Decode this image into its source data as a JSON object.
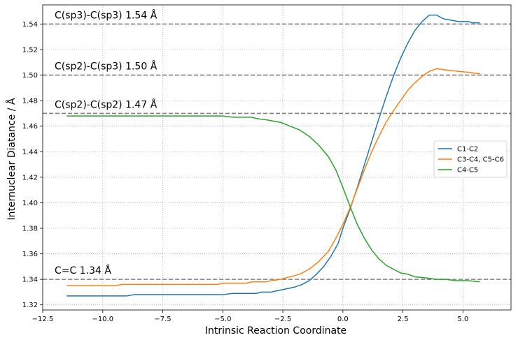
{
  "chart_data": {
    "type": "line",
    "title": "",
    "xlabel": "Intrinsic Reaction Coordinate",
    "ylabel": "Internuclear Diatance / Å",
    "xlim": [
      -12.5,
      7.0
    ],
    "ylim": [
      1.316,
      1.555
    ],
    "x_ticks": [
      -12.5,
      -10.0,
      -7.5,
      -5.0,
      -2.5,
      0.0,
      2.5,
      5.0
    ],
    "x_tick_labels": [
      "−12.5",
      "−10.0",
      "−7.5",
      "−5.0",
      "−2.5",
      "0.0",
      "2.5",
      "5.0"
    ],
    "y_ticks": [
      1.32,
      1.34,
      1.36,
      1.38,
      1.4,
      1.42,
      1.44,
      1.46,
      1.48,
      1.5,
      1.52,
      1.54
    ],
    "y_tick_labels": [
      "1.32",
      "1.34",
      "1.36",
      "1.38",
      "1.40",
      "1.42",
      "1.44",
      "1.46",
      "1.48",
      "1.50",
      "1.52",
      "1.54"
    ],
    "grid": true,
    "legend_position": "center-right",
    "reference_lines": [
      {
        "y": 1.54,
        "label": "C(sp3)-C(sp3) 1.54 Å",
        "color": "#808080"
      },
      {
        "y": 1.5,
        "label": "C(sp2)-C(sp3) 1.50 Å",
        "color": "#808080"
      },
      {
        "y": 1.47,
        "label": "C(sp2)-C(sp2) 1.47 Å",
        "color": "#808080"
      },
      {
        "y": 1.34,
        "label": "C=C 1.34 Å",
        "color": "#808080"
      }
    ],
    "series": [
      {
        "name": "C1-C2",
        "color": "#1f77b4",
        "points": [
          [
            -11.5,
            1.327
          ],
          [
            -9.0,
            1.327
          ],
          [
            -8.7,
            1.328
          ],
          [
            -5.0,
            1.328
          ],
          [
            -4.6,
            1.329
          ],
          [
            -3.6,
            1.329
          ],
          [
            -3.4,
            1.33
          ],
          [
            -3.0,
            1.33
          ],
          [
            -2.5,
            1.332
          ],
          [
            -2.0,
            1.334
          ],
          [
            -1.7,
            1.336
          ],
          [
            -1.4,
            1.339
          ],
          [
            -1.1,
            1.344
          ],
          [
            -0.8,
            1.35
          ],
          [
            -0.5,
            1.358
          ],
          [
            -0.2,
            1.368
          ],
          [
            0.0,
            1.38
          ],
          [
            0.3,
            1.395
          ],
          [
            0.6,
            1.412
          ],
          [
            0.9,
            1.43
          ],
          [
            1.2,
            1.448
          ],
          [
            1.5,
            1.466
          ],
          [
            1.8,
            1.483
          ],
          [
            2.1,
            1.499
          ],
          [
            2.4,
            1.513
          ],
          [
            2.7,
            1.525
          ],
          [
            3.0,
            1.535
          ],
          [
            3.3,
            1.542
          ],
          [
            3.6,
            1.547
          ],
          [
            3.9,
            1.547
          ],
          [
            4.2,
            1.544
          ],
          [
            4.8,
            1.542
          ],
          [
            5.2,
            1.542
          ],
          [
            5.4,
            1.541
          ],
          [
            5.7,
            1.541
          ]
        ]
      },
      {
        "name": "C3-C4, C5-C6",
        "color": "#ff7f0e",
        "points": [
          [
            -11.5,
            1.335
          ],
          [
            -9.5,
            1.335
          ],
          [
            -9.2,
            1.336
          ],
          [
            -5.2,
            1.336
          ],
          [
            -5.0,
            1.337
          ],
          [
            -4.0,
            1.337
          ],
          [
            -3.8,
            1.338
          ],
          [
            -3.2,
            1.338
          ],
          [
            -3.0,
            1.339
          ],
          [
            -2.6,
            1.34
          ],
          [
            -2.2,
            1.342
          ],
          [
            -1.8,
            1.344
          ],
          [
            -1.4,
            1.348
          ],
          [
            -1.0,
            1.354
          ],
          [
            -0.6,
            1.362
          ],
          [
            -0.3,
            1.372
          ],
          [
            0.0,
            1.383
          ],
          [
            0.3,
            1.396
          ],
          [
            0.6,
            1.411
          ],
          [
            0.9,
            1.426
          ],
          [
            1.2,
            1.44
          ],
          [
            1.5,
            1.452
          ],
          [
            1.8,
            1.463
          ],
          [
            2.1,
            1.472
          ],
          [
            2.4,
            1.48
          ],
          [
            2.7,
            1.488
          ],
          [
            3.0,
            1.494
          ],
          [
            3.3,
            1.499
          ],
          [
            3.6,
            1.503
          ],
          [
            3.9,
            1.505
          ],
          [
            4.3,
            1.504
          ],
          [
            4.8,
            1.503
          ],
          [
            5.3,
            1.502
          ],
          [
            5.7,
            1.501
          ]
        ]
      },
      {
        "name": "C4-C5",
        "color": "#2ca02c",
        "points": [
          [
            -11.5,
            1.468
          ],
          [
            -5.0,
            1.468
          ],
          [
            -4.6,
            1.467
          ],
          [
            -3.8,
            1.467
          ],
          [
            -3.6,
            1.466
          ],
          [
            -3.2,
            1.465
          ],
          [
            -2.6,
            1.463
          ],
          [
            -2.2,
            1.46
          ],
          [
            -1.8,
            1.457
          ],
          [
            -1.4,
            1.452
          ],
          [
            -1.0,
            1.445
          ],
          [
            -0.6,
            1.436
          ],
          [
            -0.3,
            1.426
          ],
          [
            0.0,
            1.412
          ],
          [
            0.3,
            1.397
          ],
          [
            0.6,
            1.383
          ],
          [
            0.9,
            1.372
          ],
          [
            1.2,
            1.363
          ],
          [
            1.5,
            1.356
          ],
          [
            1.8,
            1.351
          ],
          [
            2.1,
            1.348
          ],
          [
            2.4,
            1.345
          ],
          [
            2.7,
            1.344
          ],
          [
            3.0,
            1.342
          ],
          [
            3.5,
            1.341
          ],
          [
            3.9,
            1.34
          ],
          [
            4.3,
            1.34
          ],
          [
            4.7,
            1.339
          ],
          [
            5.2,
            1.339
          ],
          [
            5.7,
            1.338
          ]
        ]
      }
    ]
  }
}
